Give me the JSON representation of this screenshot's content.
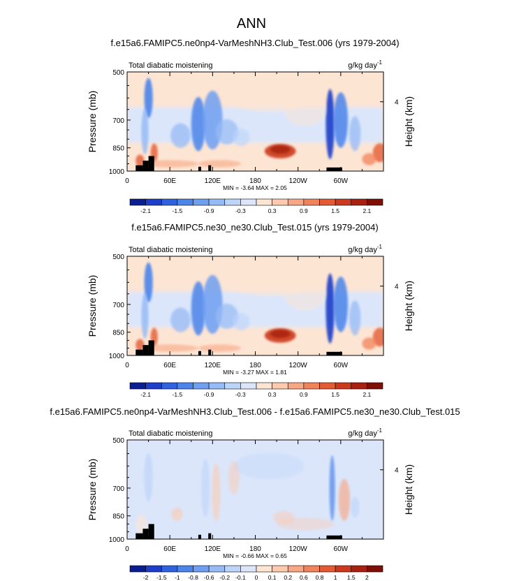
{
  "main_title": "ANN",
  "chart_data": [
    {
      "type": "heatmap",
      "title": "f.e15a6.FAMIPC5.ne0np4-VarMeshNH3.Club_Test.006 (yrs 1979-2004)",
      "left_label": "Total diabatic moistening",
      "units_label": "g/kg day",
      "units_exponent": "-1",
      "ylabel": "Pressure (mb)",
      "right_label": "Height (km)",
      "right_ticks": [
        "4"
      ],
      "xticks": [
        "0",
        "60E",
        "120E",
        "180",
        "120W",
        "60W"
      ],
      "yticks": [
        "500",
        "700",
        "850",
        "1000"
      ],
      "ylim": [
        1000,
        500
      ],
      "xlim": [
        0,
        360
      ],
      "stats": "MIN =  -3.64  MAX =  2.05",
      "colorbar_labels": [
        "-2.1",
        "-1.5",
        "-0.9",
        "-0.3",
        "0.3",
        "0.9",
        "1.5",
        "2.1"
      ],
      "colorbar_colors": [
        "#0a1e8f",
        "#1c3ec8",
        "#2f62dc",
        "#4c84ea",
        "#6f9ff0",
        "#97bbf5",
        "#bdd4f9",
        "#dbe6fb",
        "#fde5d4",
        "#fccab1",
        "#f8a784",
        "#f1835a",
        "#e35b35",
        "#cb3a1c",
        "#a82110",
        "#7e0f07"
      ]
    },
    {
      "type": "heatmap",
      "title": "f.e15a6.FAMIPC5.ne30_ne30.Club_Test.015 (yrs 1979-2004)",
      "left_label": "Total diabatic moistening",
      "units_label": "g/kg day",
      "units_exponent": "-1",
      "ylabel": "Pressure (mb)",
      "right_label": "Height (km)",
      "right_ticks": [
        "4"
      ],
      "xticks": [
        "0",
        "60E",
        "120E",
        "180",
        "120W",
        "60W"
      ],
      "yticks": [
        "500",
        "700",
        "850",
        "1000"
      ],
      "ylim": [
        1000,
        500
      ],
      "xlim": [
        0,
        360
      ],
      "stats": "MIN =  -3.27  MAX =  1.81",
      "colorbar_labels": [
        "-2.1",
        "-1.5",
        "-0.9",
        "-0.3",
        "0.3",
        "0.9",
        "1.5",
        "2.1"
      ],
      "colorbar_colors": [
        "#0a1e8f",
        "#1c3ec8",
        "#2f62dc",
        "#4c84ea",
        "#6f9ff0",
        "#97bbf5",
        "#bdd4f9",
        "#dbe6fb",
        "#fde5d4",
        "#fccab1",
        "#f8a784",
        "#f1835a",
        "#e35b35",
        "#cb3a1c",
        "#a82110",
        "#7e0f07"
      ]
    },
    {
      "type": "heatmap",
      "title": "f.e15a6.FAMIPC5.ne0np4-VarMeshNH3.Club_Test.006 - f.e15a6.FAMIPC5.ne30_ne30.Club_Test.015",
      "left_label": "Total diabatic moistening",
      "units_label": "g/kg day",
      "units_exponent": "-1",
      "ylabel": "Pressure (mb)",
      "right_label": "Height (km)",
      "right_ticks": [
        "4"
      ],
      "xticks": [
        "0",
        "60E",
        "120E",
        "180",
        "120W",
        "60W"
      ],
      "yticks": [
        "500",
        "700",
        "850",
        "1000"
      ],
      "ylim": [
        1000,
        500
      ],
      "xlim": [
        0,
        360
      ],
      "stats": "MIN =  -0.66  MAX =  0.65",
      "colorbar_labels": [
        "-2",
        "-1.5",
        "-1",
        "-0.8",
        "-0.6",
        "-0.2",
        "-0.1",
        "0",
        "0.1",
        "0.2",
        "0.6",
        "0.8",
        "1",
        "1.5",
        "2"
      ],
      "colorbar_colors": [
        "#0a1e8f",
        "#1c3ec8",
        "#2f62dc",
        "#4c84ea",
        "#6f9ff0",
        "#97bbf5",
        "#bdd4f9",
        "#dbe6fb",
        "#fde5d4",
        "#fccab1",
        "#f8a784",
        "#f1835a",
        "#e35b35",
        "#cb3a1c",
        "#a82110",
        "#7e0f07"
      ]
    }
  ]
}
